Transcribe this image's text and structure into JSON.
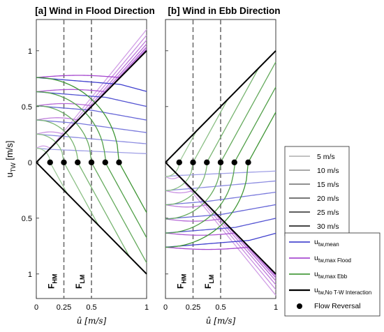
{
  "chart_data": [
    {
      "panel": "a",
      "type": "line",
      "title": "[a] Wind in Flood Direction",
      "xlabel": "û [m/s]",
      "ylabel": "u_TW [m/s]",
      "xlim": [
        0,
        1
      ],
      "ylim": [
        -1.22,
        1.28
      ],
      "x_ticks": [
        "0",
        "0.25",
        "0.5",
        "1"
      ],
      "y_ticks": [
        "1",
        "0.5",
        "0",
        "0.5",
        "1"
      ],
      "reference_lines": [
        {
          "x": 0.25,
          "label": "F_HM"
        },
        {
          "x": 0.5,
          "label": "F_LM"
        }
      ],
      "flow_reversal_points": [
        [
          0.125,
          0
        ],
        [
          0.25,
          0
        ],
        [
          0.375,
          0
        ],
        [
          0.5,
          0
        ],
        [
          0.625,
          0
        ],
        [
          0.75,
          0
        ]
      ],
      "no_interaction_lines": [
        [
          [
            0,
            0
          ],
          [
            1,
            1
          ]
        ],
        [
          [
            0,
            0
          ],
          [
            1,
            -1
          ]
        ]
      ],
      "wind_speeds": [
        "5 m/s",
        "10 m/s",
        "15 m/s",
        "20 m/s",
        "25 m/s",
        "30 m/s"
      ],
      "series_start_values": {
        "max_flood": [
          0.127,
          0.253,
          0.38,
          0.507,
          0.633,
          0.76
        ],
        "mean": [
          0.127,
          0.253,
          0.38,
          0.507,
          0.633,
          0.76
        ],
        "max_ebb": [
          0.127,
          0.253,
          0.38,
          0.507,
          0.633,
          0.76
        ]
      }
    },
    {
      "panel": "b",
      "type": "line",
      "title": "[b] Wind in Ebb Direction",
      "xlabel": "û [m/s]",
      "ylabel": "",
      "xlim": [
        0,
        1
      ],
      "ylim": [
        -1.22,
        1.28
      ],
      "x_ticks": [
        "0",
        "0.25",
        "0.5",
        "1"
      ],
      "reference_lines": [
        {
          "x": 0.25,
          "label": "F_HM"
        },
        {
          "x": 0.5,
          "label": "F_LM"
        }
      ],
      "flow_reversal_points": [
        [
          0.125,
          0
        ],
        [
          0.25,
          0
        ],
        [
          0.375,
          0
        ],
        [
          0.5,
          0
        ],
        [
          0.625,
          0
        ],
        [
          0.75,
          0
        ]
      ],
      "no_interaction_lines": [
        [
          [
            0,
            0
          ],
          [
            1,
            1
          ]
        ],
        [
          [
            0,
            0
          ],
          [
            1,
            -1
          ]
        ]
      ],
      "wind_speeds": [
        "5 m/s",
        "10 m/s",
        "15 m/s",
        "20 m/s",
        "25 m/s",
        "30 m/s"
      ],
      "series_start_values": {
        "max_flood": [
          -0.127,
          -0.253,
          -0.38,
          -0.507,
          -0.633,
          -0.76
        ],
        "mean": [
          -0.127,
          -0.253,
          -0.38,
          -0.507,
          -0.633,
          -0.76
        ],
        "max_ebb": [
          -0.127,
          -0.253,
          -0.38,
          -0.507,
          -0.633,
          -0.76
        ]
      }
    }
  ],
  "legend_wind": [
    "5 m/s",
    "10 m/s",
    "15 m/s",
    "20 m/s",
    "25 m/s",
    "30 m/s"
  ],
  "legend_series": [
    {
      "key": "mean",
      "main": "u",
      "sub": "tw,mean",
      "color": "#2b2bc8"
    },
    {
      "key": "flood",
      "main": "u",
      "sub": "tw,max Flood",
      "color": "#9a2fc8"
    },
    {
      "key": "ebb",
      "main": "u",
      "sub": "tw,max Ebb",
      "color": "#2a8a1f"
    },
    {
      "key": "none",
      "main": "u",
      "sub": "tw,No T-W Interaction",
      "color": "#000000"
    },
    {
      "key": "rev",
      "main": "",
      "sub": "",
      "label": "Flow Reversal",
      "color": "#000000"
    }
  ],
  "colors": {
    "mean": "#2b2bc8",
    "flood": "#9a2fc8",
    "ebb": "#2a8a1f",
    "none": "#000000"
  }
}
